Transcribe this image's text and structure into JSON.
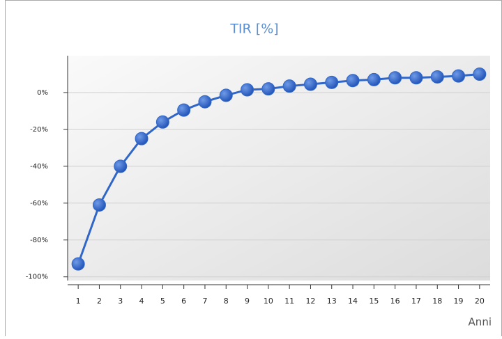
{
  "chart_data": {
    "type": "line",
    "title": "TIR [%]",
    "x_label": "Anni",
    "categories": [
      "1",
      "2",
      "3",
      "4",
      "5",
      "6",
      "7",
      "8",
      "9",
      "10",
      "11",
      "12",
      "13",
      "14",
      "15",
      "16",
      "17",
      "18",
      "19",
      "20"
    ],
    "series": [
      {
        "name": "TIR",
        "color": "#2f66c8",
        "values": [
          -93,
          -61,
          -40,
          -25,
          -16,
          -9.5,
          -5,
          -1.5,
          1.5,
          2,
          3.5,
          4.5,
          5.5,
          6.5,
          7,
          8,
          8,
          8.5,
          9,
          10
        ]
      }
    ],
    "ylim": [
      -102,
      20
    ],
    "yticks": [
      {
        "value": -100,
        "label": "-100%"
      },
      {
        "value": -80,
        "label": "-80%"
      },
      {
        "value": -60,
        "label": "-60%"
      },
      {
        "value": -40,
        "label": "-40%"
      },
      {
        "value": -20,
        "label": "-20%"
      },
      {
        "value": 0,
        "label": "0%"
      }
    ],
    "grid": true
  }
}
